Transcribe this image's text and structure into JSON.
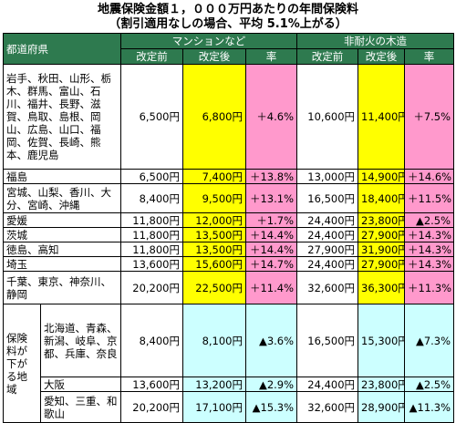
{
  "title": "地震保険金額１，０００万円あたりの年間保険料",
  "subtitle": "（割引適用なしの場合、平均 5.1%上がる）",
  "header": {
    "prefecture": "都道府県",
    "group1": "マンションなど",
    "group2": "非耐火の木造",
    "before": "改定前",
    "after": "改定後",
    "rate": "率"
  },
  "rows": [
    {
      "pref": "岩手、秋田、山形、栃木、群馬、富山、石川、福井、長野、滋賀、鳥取、島根、岡山、広島、山口、福岡、佐賀、長崎、熊本、鹿児島",
      "m_before": "6,500円",
      "m_after": "6,800円",
      "m_rate": "＋4.6%",
      "w_before": "10,600円",
      "w_after": "11,400円",
      "w_rate": "＋7.5%"
    },
    {
      "pref": "福島",
      "m_before": "6,500円",
      "m_after": "7,400円",
      "m_rate": "＋13.8%",
      "w_before": "13,000円",
      "w_after": "14,900円",
      "w_rate": "＋14.6%"
    },
    {
      "pref": "宮城、山梨、香川、大分、宮崎、沖縄",
      "m_before": "8,400円",
      "m_after": "9,500円",
      "m_rate": "＋13.1%",
      "w_before": "16,500円",
      "w_after": "18,400円",
      "w_rate": "＋11.5%"
    },
    {
      "pref": "愛媛",
      "m_before": "11,800円",
      "m_after": "12,000円",
      "m_rate": "＋1.7%",
      "w_before": "24,400円",
      "w_after": "23,800円",
      "w_rate": "▲2.5%"
    },
    {
      "pref": "茨城",
      "m_before": "11,800円",
      "m_after": "13,500円",
      "m_rate": "＋14.4%",
      "w_before": "24,400円",
      "w_after": "27,900円",
      "w_rate": "＋14.3%"
    },
    {
      "pref": "徳島、高知",
      "m_before": "11,800円",
      "m_after": "13,500円",
      "m_rate": "＋14.4%",
      "w_before": "27,900円",
      "w_after": "31,900円",
      "w_rate": "＋14.3%"
    },
    {
      "pref": "埼玉",
      "m_before": "13,600円",
      "m_after": "15,600円",
      "m_rate": "＋14.7%",
      "w_before": "24,400円",
      "w_after": "27,900円",
      "w_rate": "＋14.3%"
    },
    {
      "pref": "千葉、東京、神奈川、静岡",
      "m_before": "20,200円",
      "m_after": "22,500円",
      "m_rate": "＋11.4%",
      "w_before": "32,600円",
      "w_after": "36,300円",
      "w_rate": "＋11.3%"
    }
  ],
  "decrease_group": {
    "label": "保険料が下がる地域",
    "rows": [
      {
        "pref": "北海道、青森、新潟、岐阜、京都、兵庫、奈良",
        "m_before": "8,400円",
        "m_after": "8,100円",
        "m_rate": "▲3.6%",
        "w_before": "16,500円",
        "w_after": "15,300円",
        "w_rate": "▲7.3%"
      },
      {
        "pref": "大阪",
        "m_before": "13,600円",
        "m_after": "13,200円",
        "m_rate": "▲2.9%",
        "w_before": "24,400円",
        "w_after": "23,800円",
        "w_rate": "▲2.5%"
      },
      {
        "pref": "愛知、三重、和歌山",
        "m_before": "20,200円",
        "m_after": "17,100円",
        "m_rate": "▲15.3%",
        "w_before": "32,600円",
        "w_after": "28,900円",
        "w_rate": "▲11.3%"
      }
    ]
  },
  "colors": {
    "header_green": "#2e7a4f",
    "after_yellow": "#ffff00",
    "rate_pink": "#ff99cc",
    "decrease_cyan": "#ccffff"
  }
}
